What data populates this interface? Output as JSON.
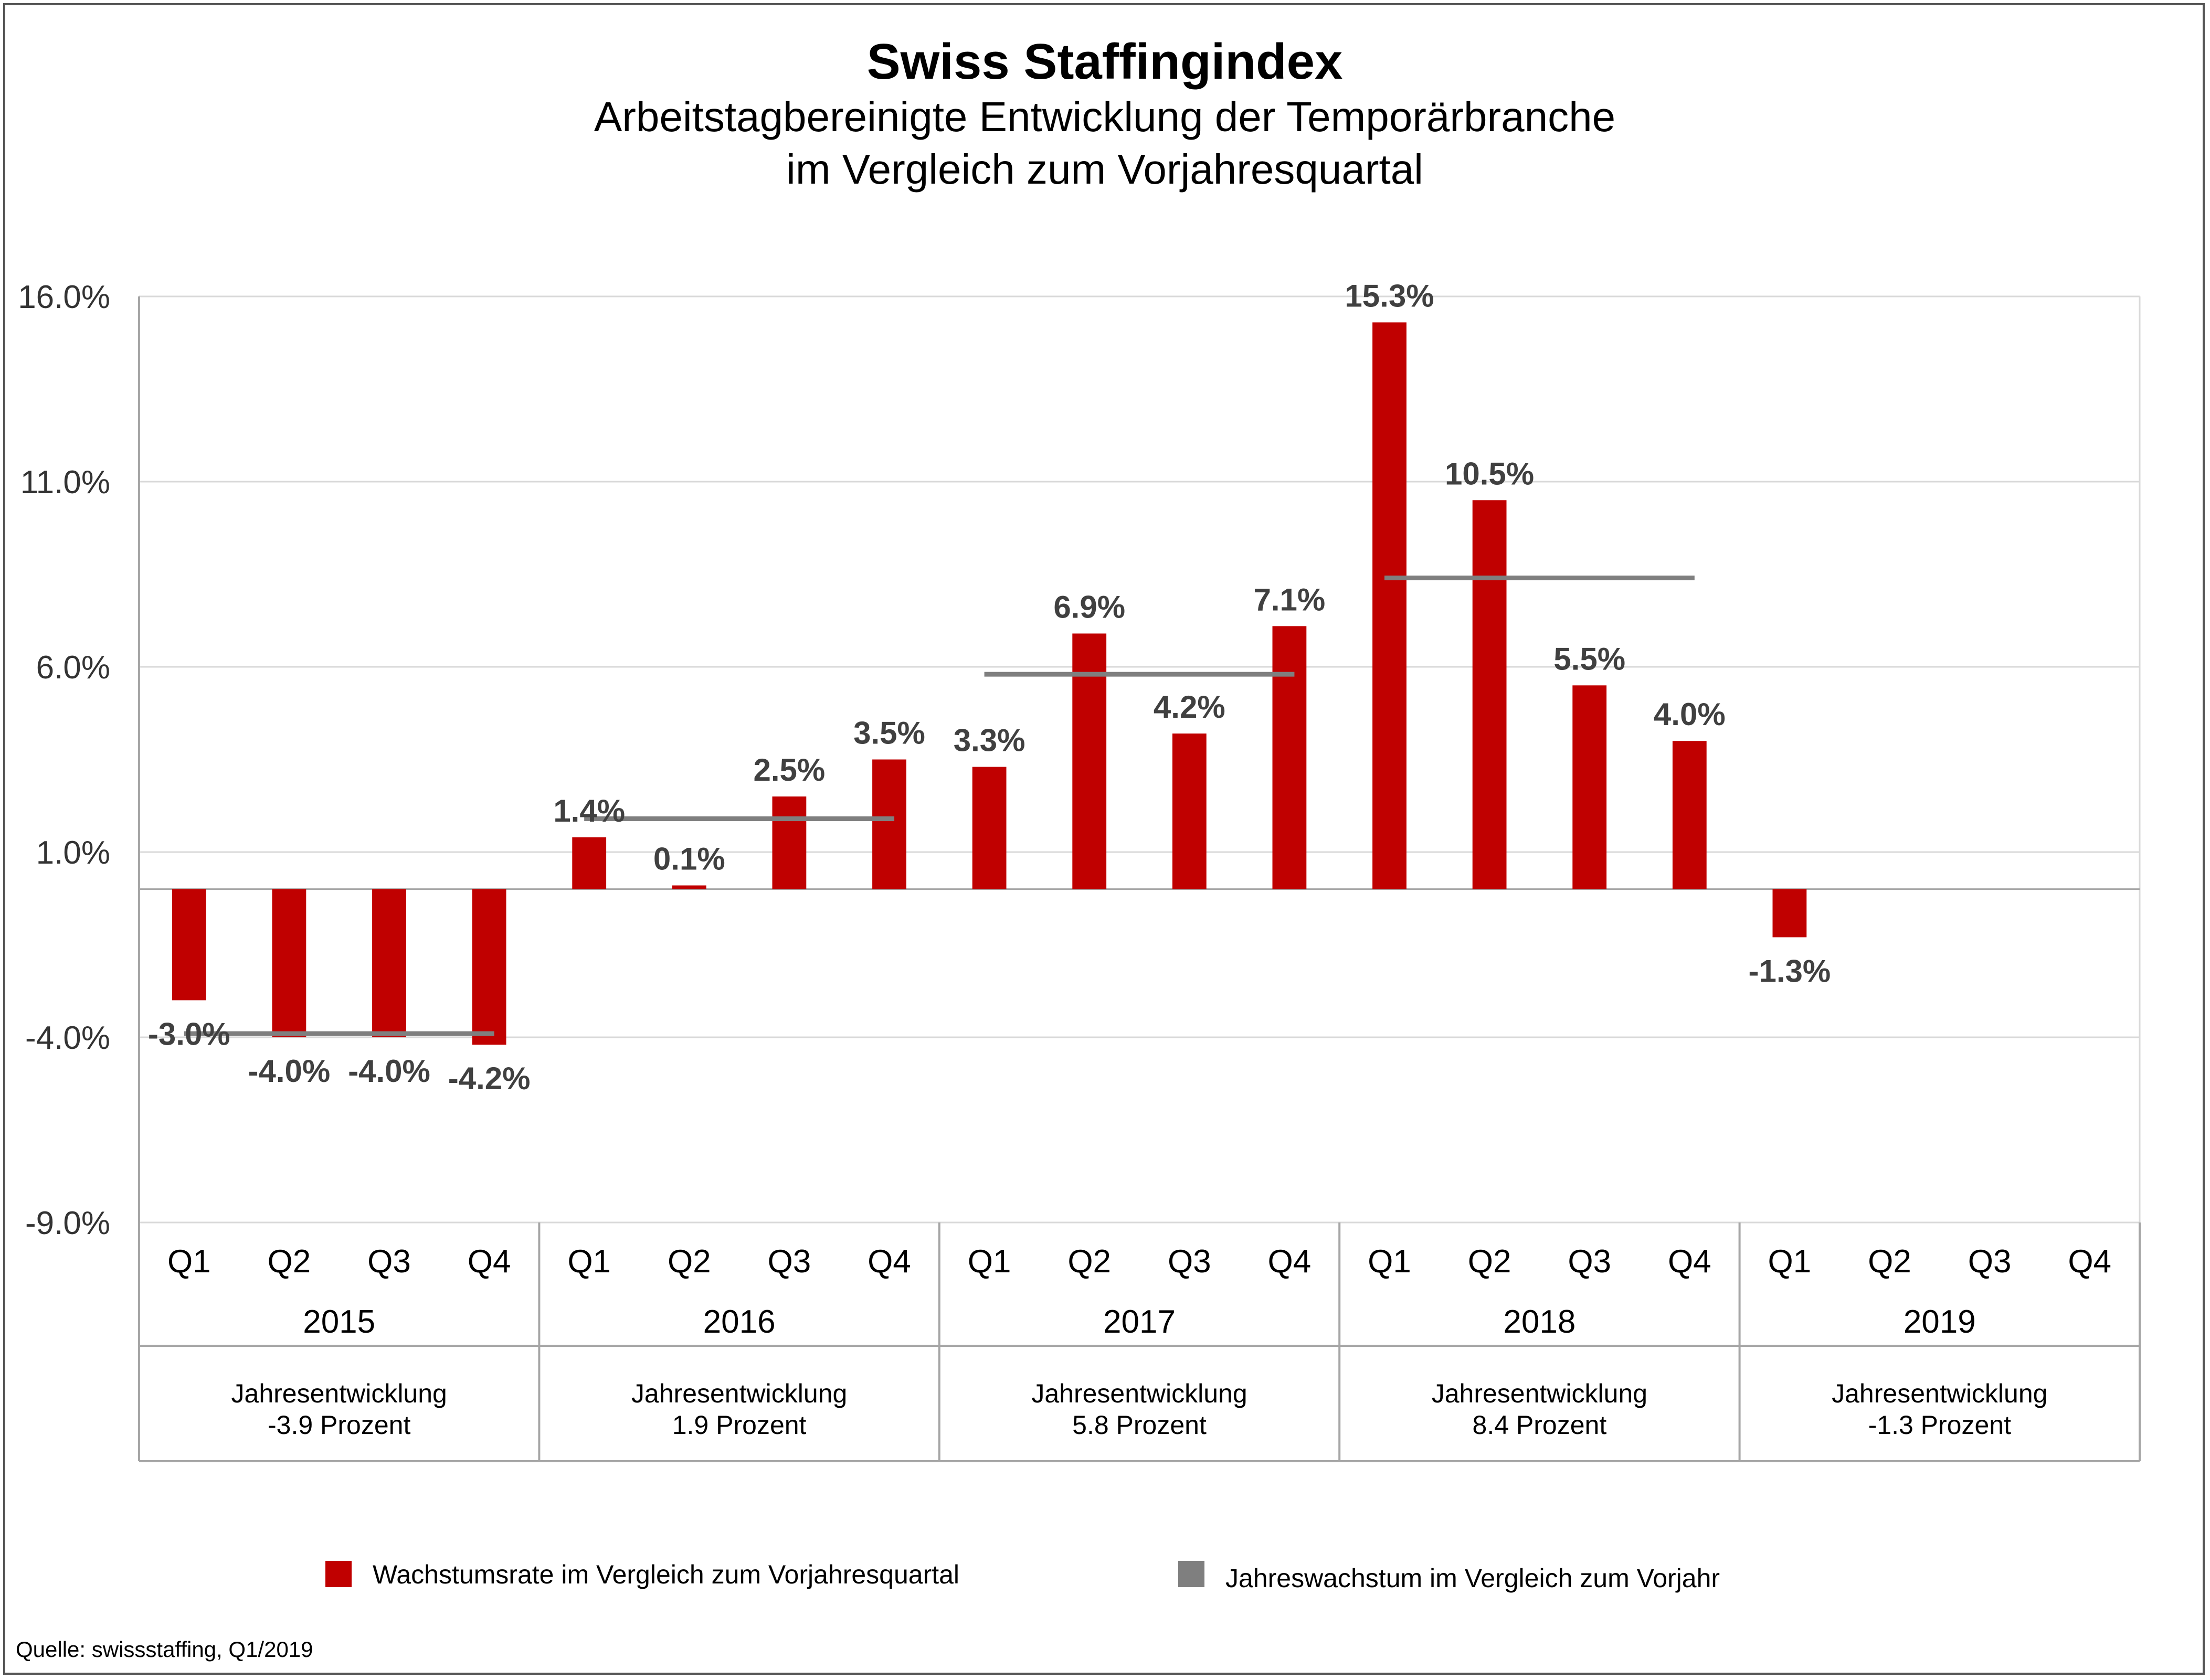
{
  "chart_data": {
    "type": "bar",
    "title": "Swiss Staffingindex",
    "subtitle": [
      "Arbeitstagbereinigte Entwicklung der Temporärbranche",
      "im Vergleich zum Vorjahresquartal"
    ],
    "ylim": [
      -9.0,
      16.0
    ],
    "y_ticks": [
      16.0,
      11.0,
      6.0,
      1.0,
      -4.0,
      -9.0
    ],
    "y_tick_labels": [
      "16.0%",
      "11.0%",
      "6.0%",
      "1.0%",
      "-4.0%",
      "-9.0%"
    ],
    "grid": true,
    "quarters": [
      "Q1",
      "Q2",
      "Q3",
      "Q4"
    ],
    "years": [
      {
        "year": "2015",
        "quarter_values": [
          -3.0,
          -4.0,
          -4.0,
          -4.2
        ],
        "quarter_labels": [
          "-3.0%",
          "-4.0%",
          "-4.0%",
          "-4.2%"
        ],
        "annual_value": -3.9,
        "annual_text": [
          "Jahresentwicklung",
          "-3.9 Prozent"
        ]
      },
      {
        "year": "2016",
        "quarter_values": [
          1.4,
          0.1,
          2.5,
          3.5
        ],
        "quarter_labels": [
          "1.4%",
          "0.1%",
          "2.5%",
          "3.5%"
        ],
        "annual_value": 1.9,
        "annual_text": [
          "Jahresentwicklung",
          "1.9 Prozent"
        ]
      },
      {
        "year": "2017",
        "quarter_values": [
          3.3,
          6.9,
          4.2,
          7.1
        ],
        "quarter_labels": [
          "3.3%",
          "6.9%",
          "4.2%",
          "7.1%"
        ],
        "annual_value": 5.8,
        "annual_text": [
          "Jahresentwicklung",
          "5.8 Prozent"
        ]
      },
      {
        "year": "2018",
        "quarter_values": [
          15.3,
          10.5,
          5.5,
          4.0
        ],
        "quarter_labels": [
          "15.3%",
          "10.5%",
          "5.5%",
          "4.0%"
        ],
        "annual_value": 8.4,
        "annual_text": [
          "Jahresentwicklung",
          "8.4 Prozent"
        ]
      },
      {
        "year": "2019",
        "quarter_values": [
          -1.3,
          null,
          null,
          null
        ],
        "quarter_labels": [
          "-1.3%",
          "",
          "",
          ""
        ],
        "annual_value": null,
        "annual_text": [
          "Jahresentwicklung",
          "-1.3 Prozent"
        ]
      }
    ],
    "series": [
      {
        "name": "Wachstumsrate im Vergleich zum Vorjahresquartal",
        "color": "#c00000",
        "kind": "bar"
      },
      {
        "name": "Jahreswachstum im Vergleich zum Vorjahr",
        "color": "#7f7f7f",
        "kind": "annual-line"
      }
    ],
    "legend_position": "bottom",
    "source": "Quelle: swissstaffing, Q1/2019"
  }
}
